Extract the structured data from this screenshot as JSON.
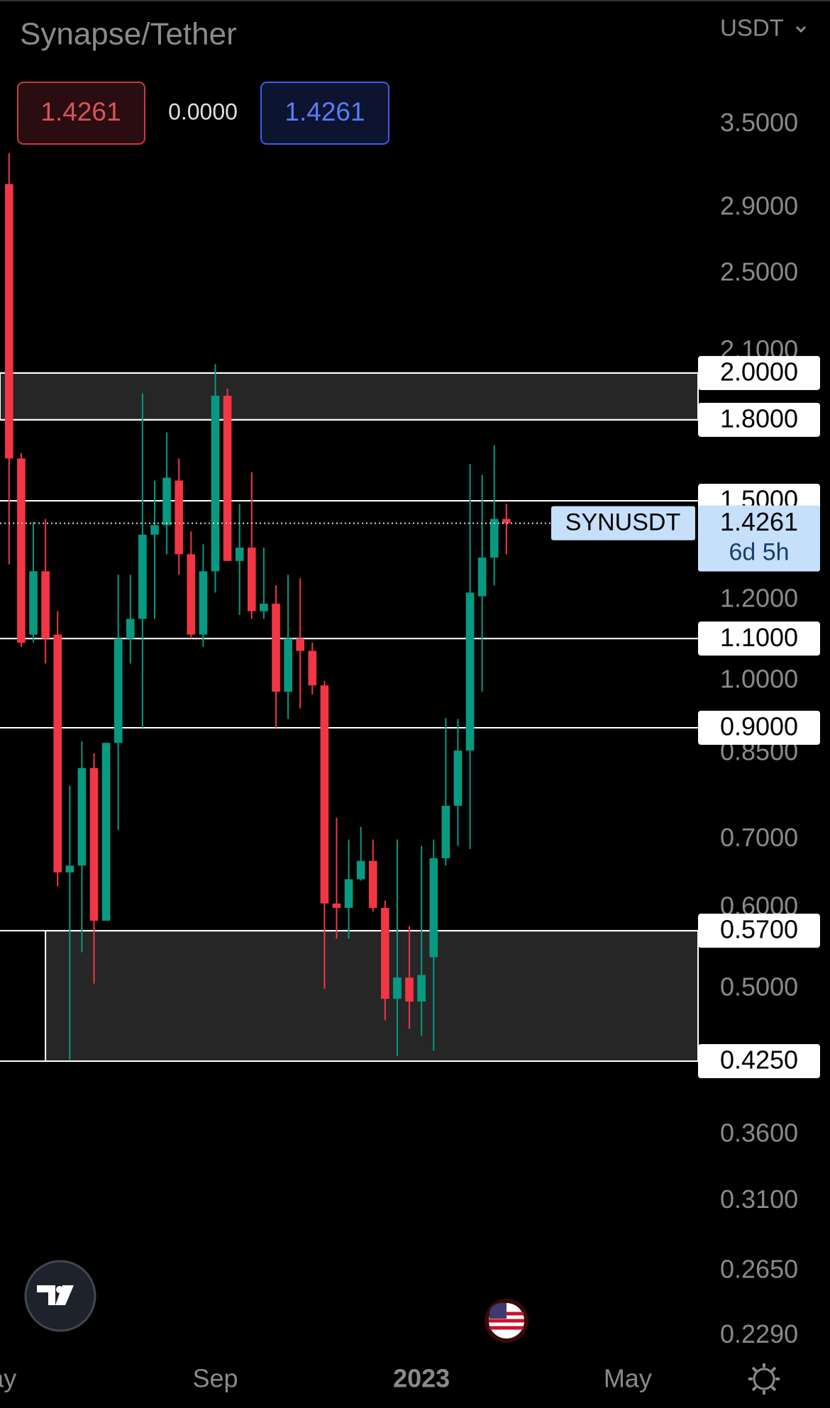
{
  "header": {
    "title": "Synapse/Tether",
    "currency": "USDT",
    "sell": "1.4261",
    "spread": "0.0000",
    "buy": "1.4261"
  },
  "chart_data": {
    "type": "candlestick",
    "log_scale": true,
    "grid": false,
    "up_color": "#089981",
    "down_color": "#f23645",
    "open": [
      3.06,
      1.65,
      1.11,
      1.28,
      1.11,
      0.65,
      0.66,
      0.822,
      0.583,
      0.87,
      1.1,
      1.15,
      1.39,
      1.42,
      1.57,
      1.33,
      1.11,
      1.28,
      1.9,
      1.31,
      1.35,
      1.17,
      1.19,
      0.976,
      1.1,
      1.07,
      0.99,
      0.606,
      0.6,
      0.64,
      0.667,
      0.6,
      0.489,
      0.513,
      0.486,
      0.537,
      0.671,
      0.755,
      0.855,
      1.21,
      1.32,
      1.44
    ],
    "high": [
      3.28,
      1.67,
      1.43,
      1.44,
      1.17,
      0.79,
      0.873,
      0.85,
      0.87,
      1.27,
      1.27,
      1.91,
      1.57,
      1.75,
      1.65,
      1.4,
      1.36,
      2.04,
      1.93,
      1.49,
      1.6,
      1.35,
      1.24,
      1.27,
      1.26,
      1.09,
      1.0,
      0.735,
      0.7,
      0.72,
      0.7,
      0.61,
      0.7,
      0.576,
      0.69,
      0.7,
      0.92,
      0.918,
      1.63,
      1.59,
      1.7,
      1.49
    ],
    "low": [
      1.3,
      1.08,
      1.09,
      1.04,
      0.63,
      0.426,
      0.543,
      0.506,
      0.583,
      0.715,
      1.04,
      0.9,
      1.15,
      1.33,
      1.27,
      1.1,
      1.08,
      1.22,
      1.31,
      1.16,
      1.15,
      1.15,
      0.9,
      0.918,
      0.94,
      0.97,
      0.5,
      0.56,
      0.56,
      0.638,
      0.595,
      0.466,
      0.43,
      0.457,
      0.45,
      0.435,
      0.66,
      0.69,
      0.685,
      0.976,
      1.24,
      1.33
    ],
    "close": [
      1.65,
      1.09,
      1.28,
      1.1,
      0.65,
      0.66,
      0.822,
      0.583,
      0.87,
      1.1,
      1.15,
      1.39,
      1.42,
      1.58,
      1.33,
      1.11,
      1.28,
      1.9,
      1.31,
      1.35,
      1.17,
      1.19,
      0.976,
      1.1,
      1.07,
      0.99,
      0.606,
      0.6,
      0.64,
      0.667,
      0.6,
      0.489,
      0.513,
      0.486,
      0.516,
      0.671,
      0.755,
      0.855,
      1.22,
      1.32,
      1.44,
      1.4261
    ],
    "xlim": [
      -0.75,
      56.8
    ],
    "xticks": [
      {
        "value": -0.5,
        "label": "ay"
      },
      {
        "value": 17,
        "label": "Sep"
      },
      {
        "value": 34,
        "label": "2023"
      },
      {
        "value": 51,
        "label": "May"
      }
    ],
    "ylim": [
      0.223,
      4.63
    ],
    "yticks": [
      {
        "value": 3.5,
        "label": "3.5000"
      },
      {
        "value": 2.9,
        "label": "2.9000"
      },
      {
        "value": 2.5,
        "label": "2.5000"
      },
      {
        "value": 2.1,
        "label": "2.1000"
      },
      {
        "value": 1.2,
        "label": "1.2000"
      },
      {
        "value": 1,
        "label": "1.0000"
      },
      {
        "value": 0.85,
        "label": "0.8500"
      },
      {
        "value": 0.7,
        "label": "0.7000"
      },
      {
        "value": 0.6,
        "label": "0.6000"
      },
      {
        "value": 0.5,
        "label": "0.5000"
      },
      {
        "value": 0.36,
        "label": "0.3600"
      },
      {
        "value": 0.31,
        "label": "0.3100"
      },
      {
        "value": 0.265,
        "label": "0.2650"
      },
      {
        "value": 0.229,
        "label": "0.2290"
      }
    ],
    "zones": [
      {
        "from": 1.8,
        "to": 2.0,
        "start": -0.75
      },
      {
        "from": 0.425,
        "to": 0.57,
        "start": 3
      }
    ],
    "levels": [
      {
        "value": 2.0,
        "label": "2.0000"
      },
      {
        "value": 1.8,
        "label": "1.8000"
      },
      {
        "value": 1.5,
        "label": "1.5000"
      },
      {
        "value": 1.1,
        "label": "1.1000"
      },
      {
        "value": 0.9,
        "label": "0.9000"
      },
      {
        "value": 0.57,
        "label": "0.5700"
      },
      {
        "value": 0.425,
        "label": "0.4250"
      }
    ],
    "last": {
      "value": 1.4261,
      "label": "1.4261",
      "symbol": "SYNUSDT",
      "countdown": "6d 5h"
    }
  }
}
